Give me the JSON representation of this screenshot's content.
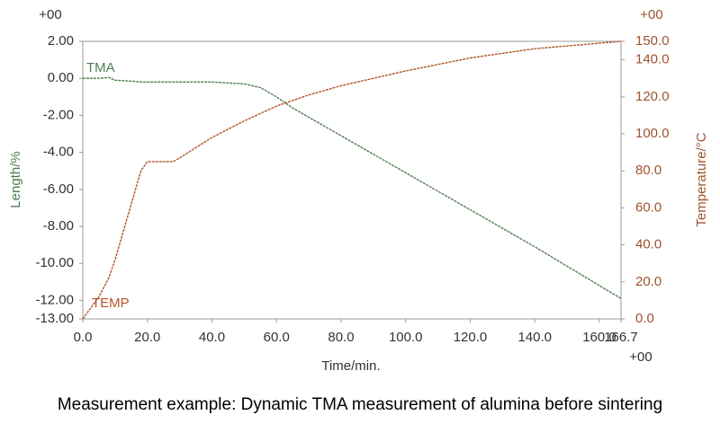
{
  "chart_data": {
    "type": "line",
    "caption": "Measurement example: Dynamic TMA measurement of alumina before sintering",
    "x_label": "Time/min.",
    "y_label": "Length/%",
    "y2_label": "Temperature/°C",
    "x_exponent": "+00",
    "y_exponent": "+00",
    "y2_exponent": "+00",
    "x": [
      0,
      5,
      8,
      10,
      15,
      18,
      20,
      25,
      28,
      30,
      40,
      50,
      55,
      60,
      65,
      70,
      80,
      100,
      120,
      140,
      160,
      166.7
    ],
    "series": [
      {
        "name": "TMA",
        "color": "#4f7d52",
        "values": [
          0,
          0,
          0.05,
          -0.1,
          -0.15,
          -0.2,
          -0.2,
          -0.2,
          -0.2,
          -0.2,
          -0.2,
          -0.3,
          -0.5,
          -1.0,
          -1.6,
          -2.1,
          -3.1,
          -5.1,
          -7.1,
          -9.1,
          -11.2,
          -11.9
        ]
      },
      {
        "name": "TEMP",
        "color": "#b5542a",
        "axis": "y2",
        "values": [
          0,
          12,
          22,
          32,
          62,
          80,
          85,
          85,
          85,
          87,
          98,
          107,
          111,
          115,
          118,
          121,
          126,
          134,
          141,
          146,
          149,
          150
        ]
      }
    ],
    "xlim": [
      0,
      166.7
    ],
    "xticks": [
      {
        "value": 0,
        "label": "0.0"
      },
      {
        "value": 20,
        "label": "20.0"
      },
      {
        "value": 40,
        "label": "40.0"
      },
      {
        "value": 60,
        "label": "60.0"
      },
      {
        "value": 80,
        "label": "80.0"
      },
      {
        "value": 100,
        "label": "100.0"
      },
      {
        "value": 120,
        "label": "120.0"
      },
      {
        "value": 140,
        "label": "140.0"
      },
      {
        "value": 160,
        "label": "160.0"
      },
      166.7
    ],
    "ylim": [
      -13,
      2
    ],
    "yticks": [
      {
        "value": 2,
        "label": "2.00"
      },
      {
        "value": 0,
        "label": "0.00"
      },
      {
        "value": -2,
        "label": "-2.00"
      },
      {
        "value": -4,
        "label": "-4.00"
      },
      {
        "value": -6,
        "label": "-6.00"
      },
      {
        "value": -8,
        "label": "-8.00"
      },
      {
        "value": -10,
        "label": "-10.00"
      },
      {
        "value": -12,
        "label": "-12.00"
      },
      {
        "value": -13,
        "label": "-13.00"
      }
    ],
    "y2lim": [
      0,
      150
    ],
    "y2ticks": [
      {
        "value": 0,
        "label": "0.0"
      },
      {
        "value": 20,
        "label": "20.0"
      },
      {
        "value": 40,
        "label": "40.0"
      },
      {
        "value": 60,
        "label": "60.0"
      },
      {
        "value": 80,
        "label": "80.0"
      },
      {
        "value": 100,
        "label": "100.0"
      },
      {
        "value": 120,
        "label": "120.0"
      },
      {
        "value": 140,
        "label": "140.0"
      },
      {
        "value": 150,
        "label": "150.0"
      }
    ],
    "y2_color": "#a0522d",
    "y_label_color": "#4f7d52"
  }
}
